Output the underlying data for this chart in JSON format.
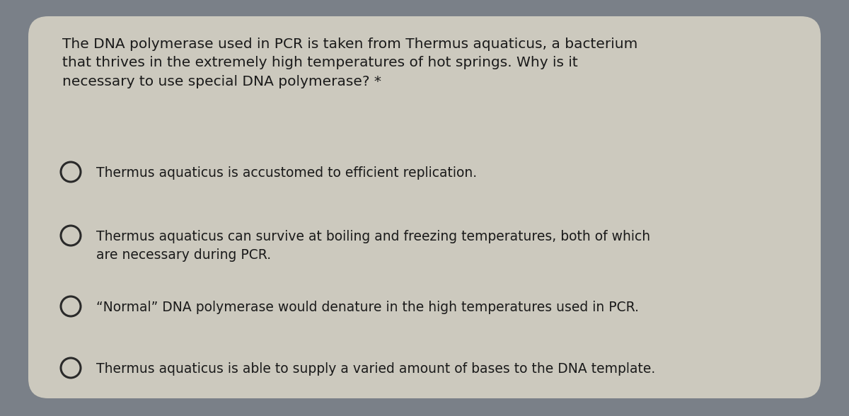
{
  "background_color": "#7a8088",
  "card_color": "#ccc9be",
  "question_text": "The DNA polymerase used in PCR is taken from Thermus aquaticus, a bacterium\nthat thrives in the extremely high temperatures of hot springs. Why is it\nnecessary to use special DNA polymerase? *",
  "options": [
    "Thermus aquaticus is accustomed to efficient replication.",
    "Thermus aquaticus can survive at boiling and freezing temperatures, both of which\nare necessary during PCR.",
    "“Normal” DNA polymerase would denature in the high temperatures used in PCR.",
    "Thermus aquaticus is able to supply a varied amount of bases to the DNA template."
  ],
  "text_color": "#1a1a1a",
  "question_fontsize": 14.5,
  "option_fontsize": 13.5,
  "circle_color": "#2a2a2a",
  "circle_linewidth": 2.2,
  "fig_width": 12.0,
  "fig_height": 5.88
}
